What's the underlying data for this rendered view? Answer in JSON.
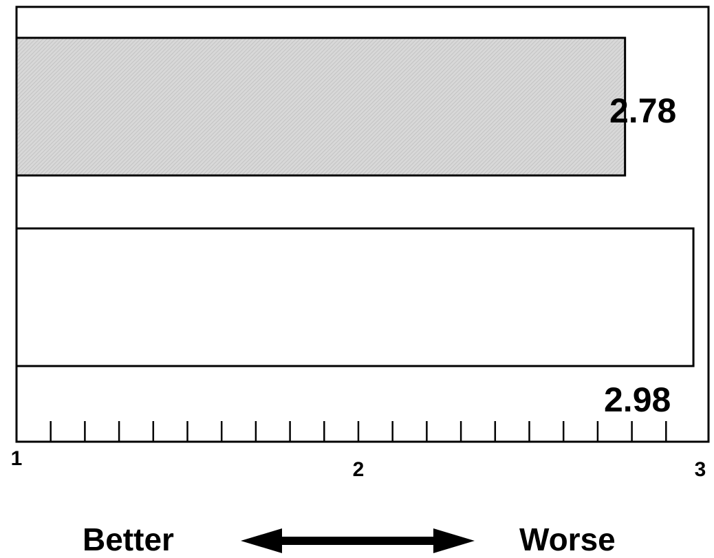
{
  "chart_data": {
    "type": "bar",
    "orientation": "horizontal",
    "categories": [
      "",
      ""
    ],
    "values": [
      2.78,
      2.98
    ],
    "value_labels": [
      "2.78",
      "2.98"
    ],
    "bar_fills": [
      "#cfcfcf",
      "#ffffff"
    ],
    "xlim": [
      1,
      3
    ],
    "x_tick_labels": [
      {
        "value": 1,
        "label": "1"
      },
      {
        "value": 2,
        "label": "2"
      },
      {
        "value": 3,
        "label": "3"
      }
    ],
    "minor_tick_step": 0.1,
    "direction_labels": {
      "left": "Better",
      "right": "Worse"
    },
    "title": "",
    "xlabel": "",
    "ylabel": "",
    "grid": false
  }
}
